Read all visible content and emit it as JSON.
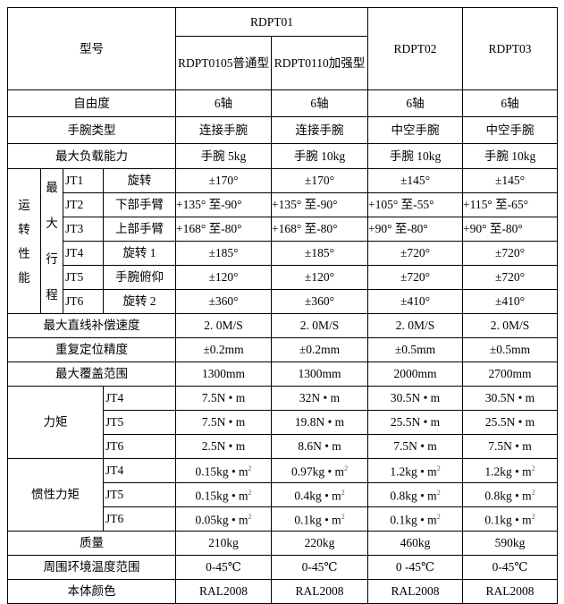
{
  "header": {
    "model_label": "型号",
    "group": "RDPT01",
    "models": [
      "RDPT0105普通型",
      "RDPT0110加强型",
      "RDPT02",
      "RDPT03"
    ]
  },
  "dof": {
    "label": "自由度",
    "values": [
      "6轴",
      "6轴",
      "6轴",
      "6轴"
    ]
  },
  "wrist_type": {
    "label": "手腕类型",
    "values": [
      "连接手腕",
      "连接手腕",
      "中空手腕",
      "中空手腕"
    ]
  },
  "max_load": {
    "label": "最大负载能力",
    "values": [
      "手腕 5kg",
      "手腕 10kg",
      "手腕 10kg",
      "手腕 10kg"
    ]
  },
  "motion": {
    "label": "运转性能",
    "sub_label": "最大行程",
    "joints": [
      {
        "joint": "JT1",
        "name": "旋转",
        "values": [
          "±170°",
          "±170°",
          "±145°",
          "±145°"
        ]
      },
      {
        "joint": "JT2",
        "name": "下部手臂",
        "values": [
          "+135° 至-90°",
          "+135° 至-90°",
          "+105° 至-55°",
          "+115° 至-65°"
        ]
      },
      {
        "joint": "JT3",
        "name": "上部手臂",
        "values": [
          "+168° 至-80°",
          "+168° 至-80°",
          "+90° 至-80°",
          "+90° 至-80°"
        ]
      },
      {
        "joint": "JT4",
        "name": "旋转 1",
        "values": [
          "±185°",
          "±185°",
          "±720°",
          "±720°"
        ]
      },
      {
        "joint": "JT5",
        "name": "手腕俯仰",
        "values": [
          "±120°",
          "±120°",
          "±720°",
          "±720°"
        ]
      },
      {
        "joint": "JT6",
        "name": "旋转 2",
        "values": [
          "±360°",
          "±360°",
          "±410°",
          "±410°"
        ]
      }
    ]
  },
  "speed": {
    "label": "最大直线补偿速度",
    "values": [
      "2. 0M/S",
      "2. 0M/S",
      "2. 0M/S",
      "2. 0M/S"
    ]
  },
  "repeatability": {
    "label": "重复定位精度",
    "values": [
      "±0.2mm",
      "±0.2mm",
      "±0.5mm",
      "±0.5mm"
    ]
  },
  "reach": {
    "label": "最大覆盖范围",
    "values": [
      "1300mm",
      "1300mm",
      "2000mm",
      "2700mm"
    ]
  },
  "torque": {
    "label": "力矩",
    "rows": [
      {
        "joint": "JT4",
        "values": [
          "7.5N • m",
          "32N • m",
          "30.5N • m",
          "30.5N • m"
        ]
      },
      {
        "joint": "JT5",
        "values": [
          "7.5N • m",
          "19.8N • m",
          "25.5N • m",
          "25.5N • m"
        ]
      },
      {
        "joint": "JT6",
        "values": [
          "2.5N • m",
          "8.6N • m",
          "7.5N • m",
          "7.5N • m"
        ]
      }
    ]
  },
  "inertia": {
    "label": "惯性力矩",
    "exponent": "2",
    "rows": [
      {
        "joint": "JT4",
        "values": [
          "0.15kg • m",
          "0.97kg • m",
          "1.2kg • m",
          "1.2kg • m"
        ]
      },
      {
        "joint": "JT5",
        "values": [
          "0.15kg • m",
          "0.4kg • m",
          "0.8kg • m",
          "0.8kg • m"
        ]
      },
      {
        "joint": "JT6",
        "values": [
          "0.05kg • m",
          "0.1kg • m",
          "0.1kg • m",
          "0.1kg • m"
        ]
      }
    ]
  },
  "mass": {
    "label": "质量",
    "values": [
      "210kg",
      "220kg",
      "460kg",
      "590kg"
    ]
  },
  "temperature": {
    "label": "周围环境温度范围",
    "values": [
      "0-45℃",
      "0-45℃",
      "0 -45℃",
      "0-45℃"
    ]
  },
  "color": {
    "label": "本体颜色",
    "values": [
      "RAL2008",
      "RAL2008",
      "RAL2008",
      "RAL2008"
    ]
  }
}
